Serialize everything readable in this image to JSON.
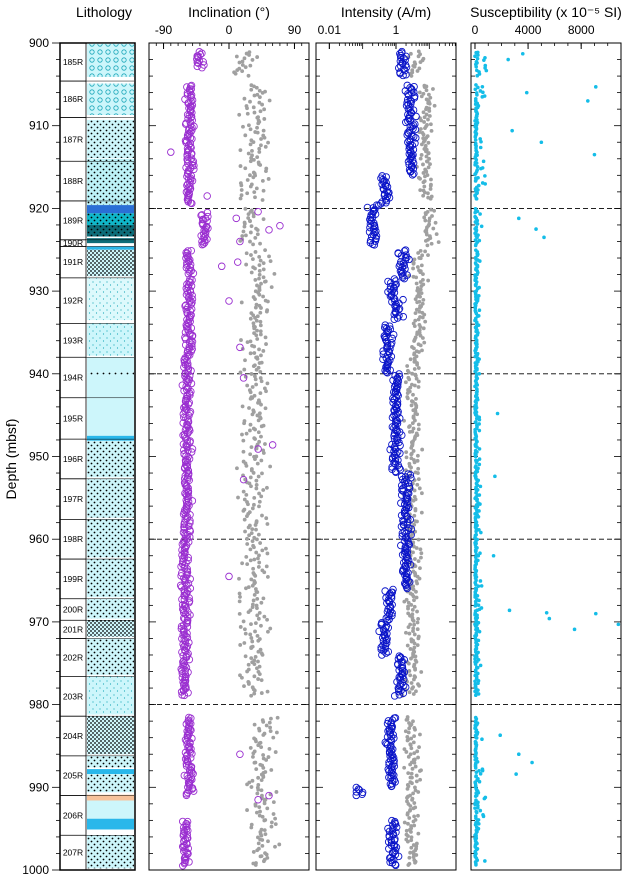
{
  "chart_data": [
    {
      "type": "table",
      "title": "Lithology",
      "ylabel": "Depth (mbsf)",
      "ylim": [
        900,
        1000
      ],
      "yticks": [
        "900",
        "910",
        "920",
        "930",
        "940",
        "950",
        "960",
        "970",
        "980",
        "990",
        "1000"
      ],
      "cores": [
        {
          "label": "185R",
          "top": 900.0,
          "bottom": 904.6
        },
        {
          "label": "186R",
          "top": 904.6,
          "bottom": 909.0
        },
        {
          "label": "187R",
          "top": 909.0,
          "bottom": 914.3
        },
        {
          "label": "188R",
          "top": 914.3,
          "bottom": 919.1
        },
        {
          "label": "189R",
          "top": 919.1,
          "bottom": 923.8
        },
        {
          "label": "190R",
          "top": 923.8,
          "bottom": 924.6
        },
        {
          "label": "191R",
          "top": 924.6,
          "bottom": 928.4
        },
        {
          "label": "192R",
          "top": 928.4,
          "bottom": 933.9
        },
        {
          "label": "193R",
          "top": 933.9,
          "bottom": 938.0
        },
        {
          "label": "194R",
          "top": 938.0,
          "bottom": 942.9
        },
        {
          "label": "195R",
          "top": 942.9,
          "bottom": 947.9
        },
        {
          "label": "196R",
          "top": 947.9,
          "bottom": 952.7
        },
        {
          "label": "197R",
          "top": 952.7,
          "bottom": 957.6
        },
        {
          "label": "198R",
          "top": 957.6,
          "bottom": 962.4
        },
        {
          "label": "199R",
          "top": 962.4,
          "bottom": 967.2
        },
        {
          "label": "200R",
          "top": 967.2,
          "bottom": 969.8
        },
        {
          "label": "201R",
          "top": 969.8,
          "bottom": 972.0
        },
        {
          "label": "202R",
          "top": 972.0,
          "bottom": 976.6
        },
        {
          "label": "203R",
          "top": 976.6,
          "bottom": 981.4
        },
        {
          "label": "204R",
          "top": 981.4,
          "bottom": 986.2
        },
        {
          "label": "205R",
          "top": 986.2,
          "bottom": 991.0
        },
        {
          "label": "206R",
          "top": 991.0,
          "bottom": 995.8
        },
        {
          "label": "207R",
          "top": 995.8,
          "bottom": 1000.0
        }
      ],
      "units": [
        {
          "top": 900.1,
          "bottom": 904.1,
          "pattern": "circles",
          "color": "#cdf6fb"
        },
        {
          "top": 904.9,
          "bottom": 908.7,
          "pattern": "circles",
          "color": "#cdf6fb"
        },
        {
          "top": 909.3,
          "bottom": 913.9,
          "pattern": "dots",
          "color": "#cdf6fb"
        },
        {
          "top": 914.0,
          "bottom": 919.6,
          "pattern": "dots",
          "color": "#bdf3f8"
        },
        {
          "top": 919.6,
          "bottom": 920.6,
          "pattern": "solid",
          "color": "#2a6fd6"
        },
        {
          "top": 920.6,
          "bottom": 922.0,
          "pattern": "dots",
          "color": "#0fb7c9"
        },
        {
          "top": 922.0,
          "bottom": 923.4,
          "pattern": "dots",
          "color": "#0d6d79"
        },
        {
          "top": 923.6,
          "bottom": 924.2,
          "pattern": "solid",
          "color": "#0d6d79"
        },
        {
          "top": 924.6,
          "bottom": 925.0,
          "pattern": "solid",
          "color": "#29b7ea"
        },
        {
          "top": 925.0,
          "bottom": 928.2,
          "pattern": "dense",
          "color": "#cdf6fb"
        },
        {
          "top": 928.4,
          "bottom": 933.5,
          "pattern": "speckle",
          "color": "#ddf9fc"
        },
        {
          "top": 933.9,
          "bottom": 937.8,
          "pattern": "speckle",
          "color": "#cdf6fb"
        },
        {
          "top": 938.0,
          "bottom": 939.8,
          "pattern": "solid",
          "color": "#cdf6fb"
        },
        {
          "top": 939.8,
          "bottom": 940.2,
          "pattern": "dots",
          "color": "#cdf6fb"
        },
        {
          "top": 940.2,
          "bottom": 947.5,
          "pattern": "solid",
          "color": "#cdf6fb"
        },
        {
          "top": 947.5,
          "bottom": 948.1,
          "pattern": "solid",
          "color": "#29b7ea"
        },
        {
          "top": 948.1,
          "bottom": 952.5,
          "pattern": "dots",
          "color": "#cdf6fb"
        },
        {
          "top": 952.7,
          "bottom": 957.4,
          "pattern": "dots",
          "color": "#cdf6fb"
        },
        {
          "top": 957.6,
          "bottom": 962.2,
          "pattern": "dots",
          "color": "#cdf6fb"
        },
        {
          "top": 962.4,
          "bottom": 967.0,
          "pattern": "dots",
          "color": "#cdf6fb"
        },
        {
          "top": 967.2,
          "bottom": 969.6,
          "pattern": "dots",
          "color": "#cdf6fb"
        },
        {
          "top": 969.8,
          "bottom": 971.8,
          "pattern": "dense",
          "color": "#cdf6fb"
        },
        {
          "top": 972.0,
          "bottom": 976.4,
          "pattern": "dots",
          "color": "#cdf6fb"
        },
        {
          "top": 976.6,
          "bottom": 981.2,
          "pattern": "speckle",
          "color": "#cdf6fb"
        },
        {
          "top": 981.4,
          "bottom": 986.0,
          "pattern": "dense",
          "color": "#cdf6fb"
        },
        {
          "top": 986.2,
          "bottom": 987.6,
          "pattern": "dots",
          "color": "#cdf6fb"
        },
        {
          "top": 987.8,
          "bottom": 988.4,
          "pattern": "solid",
          "color": "#29b7ea"
        },
        {
          "top": 988.4,
          "bottom": 990.6,
          "pattern": "dots",
          "color": "#cdf6fb"
        },
        {
          "top": 990.9,
          "bottom": 991.6,
          "pattern": "solid",
          "color": "#f7c39c"
        },
        {
          "top": 991.6,
          "bottom": 993.8,
          "pattern": "solid",
          "color": "#cdf6fb"
        },
        {
          "top": 993.8,
          "bottom": 995.1,
          "pattern": "solid",
          "color": "#29b7ea"
        },
        {
          "top": 995.8,
          "bottom": 999.8,
          "pattern": "dots",
          "color": "#cdf6fb"
        }
      ]
    },
    {
      "type": "scatter",
      "title": "Inclination (°)",
      "xlim": [
        -110,
        110
      ],
      "xticks": [
        "-90",
        "0",
        "90"
      ],
      "ylim": [
        900,
        1000
      ],
      "series": [
        {
          "marker": "open-circle",
          "color": "#9a2fd0",
          "segments": [
            [
              901,
              903,
              -40
            ],
            [
              905,
              919.5,
              -55
            ],
            [
              920.5,
              924.5,
              -35
            ],
            [
              925,
              928,
              -55
            ],
            [
              928.5,
              938,
              -55
            ],
            [
              938,
              960,
              -58
            ],
            [
              960,
              979,
              -60
            ],
            [
              981.5,
              991,
              -55
            ],
            [
              994,
              999.5,
              -60
            ]
          ],
          "outliers": [
            [
              920.4,
              40
            ],
            [
              921.2,
              10
            ],
            [
              922.1,
              70
            ],
            [
              922.6,
              55
            ],
            [
              924.0,
              15
            ],
            [
              926.5,
              12
            ],
            [
              927.0,
              -10
            ],
            [
              936.8,
              15
            ],
            [
              940.5,
              20
            ],
            [
              949.1,
              40
            ],
            [
              948.6,
              60
            ],
            [
              952.8,
              20
            ],
            [
              964.5,
              0
            ],
            [
              991.0,
              55
            ],
            [
              991.5,
              40
            ],
            [
              986.0,
              15
            ],
            [
              918.5,
              -30
            ],
            [
              913.2,
              -80
            ],
            [
              931.2,
              0
            ]
          ]
        },
        {
          "marker": "dot",
          "color": "#a0a0a0",
          "segments": [
            [
              901,
              904,
              20
            ],
            [
              905,
              919,
              35
            ],
            [
              920,
              924.5,
              30
            ],
            [
              925,
              938,
              40
            ],
            [
              938,
              979,
              35
            ],
            [
              981.5,
              999.5,
              45
            ]
          ]
        }
      ],
      "dashed_depths": [
        920,
        940,
        960,
        980
      ]
    },
    {
      "type": "scatter",
      "title": "Intensity (A/m)",
      "xlim": [
        -2.4,
        1.8
      ],
      "xscale": "log",
      "xticks": [
        "0.01",
        "1"
      ],
      "ylim": [
        900,
        1000
      ],
      "series": [
        {
          "marker": "open-circle",
          "color": "#0a14c8",
          "segments": [
            [
              901,
              904,
              0.2
            ],
            [
              905,
              916,
              0.45
            ],
            [
              916,
              919.5,
              -0.35
            ],
            [
              919.5,
              924.5,
              -0.7
            ],
            [
              925,
              928.5,
              0.2
            ],
            [
              928.5,
              931,
              -0.1
            ],
            [
              931,
              933.5,
              0.05
            ],
            [
              934,
              938,
              -0.25
            ],
            [
              938,
              940,
              -0.3
            ],
            [
              940,
              952,
              0.0
            ],
            [
              952,
              960,
              0.3
            ],
            [
              960,
              966,
              0.3
            ],
            [
              966,
              970,
              -0.2
            ],
            [
              970,
              974,
              -0.35
            ],
            [
              974,
              979,
              0.15
            ],
            [
              981.5,
              990,
              -0.15
            ],
            [
              990,
              991,
              -1.1
            ],
            [
              994,
              999.5,
              -0.1
            ]
          ]
        },
        {
          "marker": "dot",
          "color": "#a0a0a0",
          "segments": [
            [
              901,
              904,
              0.6
            ],
            [
              905,
              919,
              0.9
            ],
            [
              920,
              924.5,
              1.0
            ],
            [
              925,
              938,
              0.7
            ],
            [
              938,
              979,
              0.5
            ],
            [
              981.5,
              999.5,
              0.5
            ]
          ]
        }
      ],
      "dashed_depths": [
        920,
        940,
        960,
        980
      ]
    },
    {
      "type": "scatter",
      "title": "Susceptibility (x 10⁻⁵ SI)",
      "xlim": [
        -300,
        11000
      ],
      "xticks": [
        "0",
        "4000",
        "8000"
      ],
      "ylim": [
        900,
        1000
      ],
      "series": [
        {
          "marker": "dot",
          "color": "#14bde8",
          "segments": [
            [
              901,
              904,
              800
            ],
            [
              905,
              919,
              900
            ],
            [
              920,
              924.5,
              1000
            ],
            [
              925,
              938,
              250
            ],
            [
              938,
              979,
              350
            ],
            [
              981.5,
              999.5,
              700
            ]
          ],
          "outliers": [
            [
              901.3,
              3600
            ],
            [
              902.0,
              2500
            ],
            [
              906.0,
              3900
            ],
            [
              907.0,
              8500
            ],
            [
              905.3,
              9100
            ],
            [
              910.6,
              2800
            ],
            [
              912.0,
              5000
            ],
            [
              913.5,
              9000
            ],
            [
              921.2,
              3300
            ],
            [
              922.5,
              4600
            ],
            [
              923.5,
              5200
            ],
            [
              944.8,
              1700
            ],
            [
              952.4,
              1500
            ],
            [
              962.0,
              1400
            ],
            [
              968.6,
              2600
            ],
            [
              968.9,
              5400
            ],
            [
              969.6,
              5600
            ],
            [
              969.0,
              9100
            ],
            [
              970.3,
              10800
            ],
            [
              970.9,
              7500
            ],
            [
              983.7,
              1900
            ],
            [
              986.0,
              3300
            ],
            [
              987.0,
              4300
            ],
            [
              988.4,
              3100
            ]
          ]
        }
      ],
      "dashed_depths": [
        920,
        940,
        960,
        980
      ]
    }
  ]
}
